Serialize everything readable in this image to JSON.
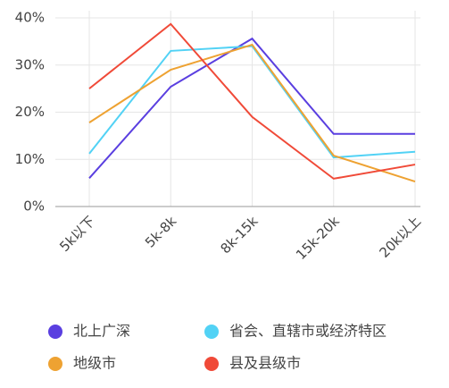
{
  "chart_data": {
    "type": "line",
    "categories": [
      "5k以下",
      "5k-8k",
      "8k-15k",
      "15k-20k",
      "20k以上"
    ],
    "series": [
      {
        "name": "北上广深",
        "color": "#5a3fe0",
        "values": [
          6,
          25.4,
          35.6,
          15.4,
          15.4
        ]
      },
      {
        "name": "省会、直辖市或经济特区",
        "color": "#52d2f5",
        "values": [
          11.2,
          33,
          34,
          10.4,
          11.6
        ]
      },
      {
        "name": "地级市",
        "color": "#eea232",
        "values": [
          17.8,
          29,
          34.3,
          10.8,
          5.3
        ]
      },
      {
        "name": "县及县级市",
        "color": "#f04a38",
        "values": [
          25,
          38.7,
          19,
          5.9,
          8.9
        ]
      }
    ],
    "ylim": [
      0,
      40
    ],
    "yticks": [
      {
        "value": 0,
        "label": "0%"
      },
      {
        "value": 10,
        "label": "10%"
      },
      {
        "value": 20,
        "label": "20%"
      },
      {
        "value": 30,
        "label": "30%"
      },
      {
        "value": 40,
        "label": "40%"
      }
    ],
    "grid": true
  }
}
